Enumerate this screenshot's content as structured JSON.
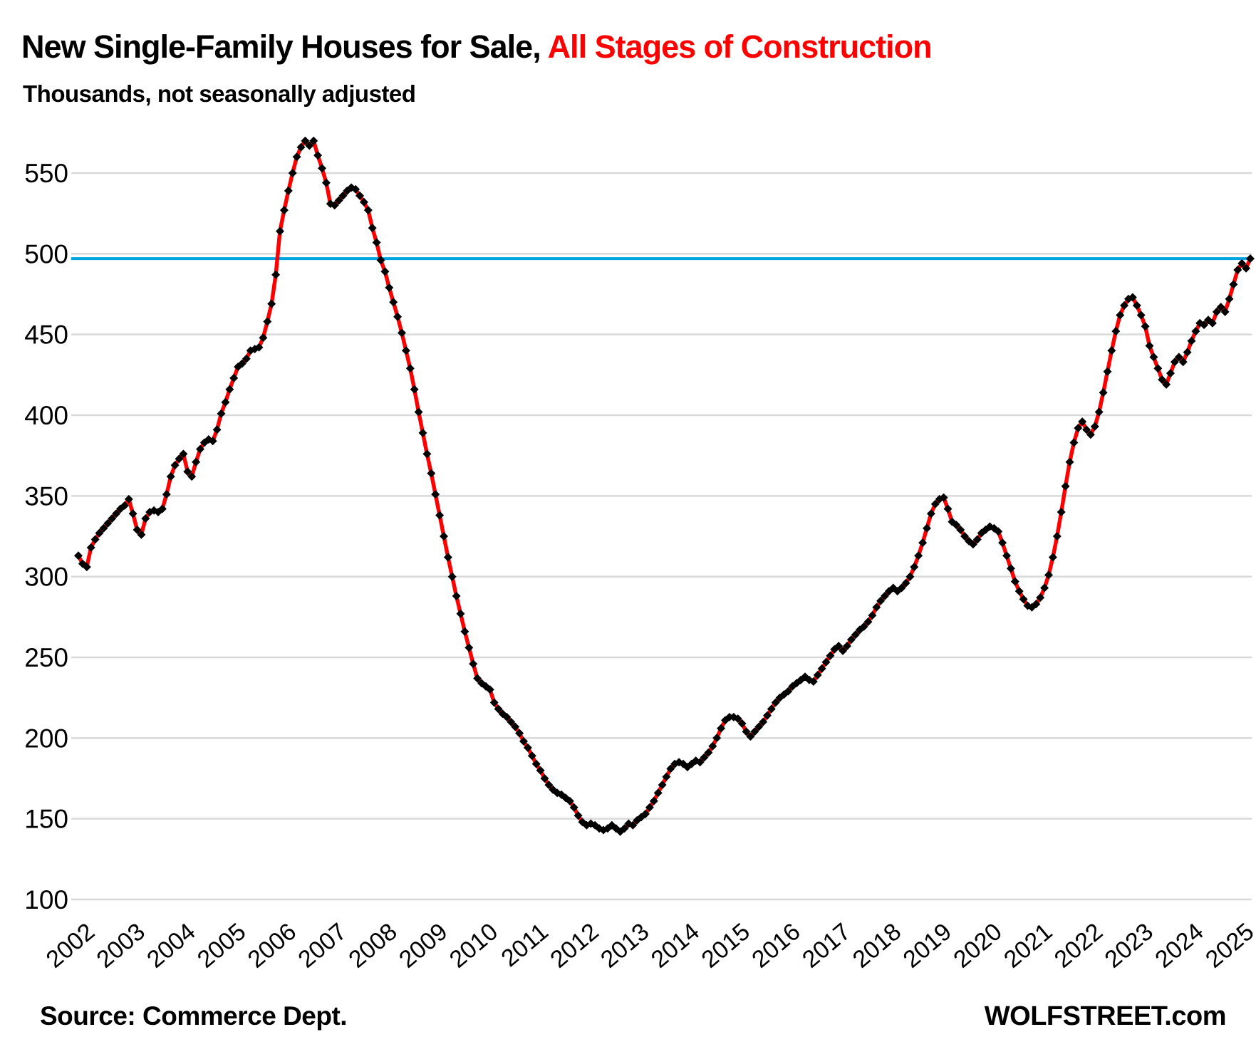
{
  "header": {
    "title_black": "New Single-Family Houses for Sale,",
    "title_red": "All Stages of Construction",
    "subtitle": "Thousands, not seasonally adjusted"
  },
  "footer": {
    "source": "Source: Commerce Dept.",
    "site": "WOLFSTREET.com"
  },
  "colors": {
    "series_line": "#ff0000",
    "marker": "#000000",
    "reference_line": "#00a3e0",
    "grid": "#d9d9d9",
    "title_accent": "#ff0000",
    "text": "#000000"
  },
  "chart_data": {
    "type": "line",
    "title": "New Single-Family Houses for Sale, All Stages of Construction",
    "subtitle": "Thousands, not seasonally adjusted",
    "xlabel": "",
    "ylabel": "Thousands, not seasonally adjusted",
    "x_start": "2002-01",
    "x_end": "2025-04",
    "points_per_year": 12,
    "x_tick_labels": [
      "2002",
      "2003",
      "2004",
      "2005",
      "2006",
      "2007",
      "2008",
      "2009",
      "2010",
      "2011",
      "2012",
      "2013",
      "2014",
      "2015",
      "2016",
      "2017",
      "2018",
      "2019",
      "2020",
      "2021",
      "2022",
      "2023",
      "2024",
      "2025"
    ],
    "y_ticks": [
      100,
      150,
      200,
      250,
      300,
      350,
      400,
      450,
      500,
      550
    ],
    "ylim": [
      100,
      575
    ],
    "grid": "horizontal",
    "legend": "none",
    "reference_line": {
      "value": 497
    },
    "series": [
      {
        "name": "New single-family houses for sale, all stages of construction (thousands, NSA)",
        "marker": "diamond",
        "values": [
          313,
          308,
          306,
          318,
          323,
          327,
          330,
          333,
          336,
          339,
          342,
          344,
          348,
          339,
          329,
          326,
          336,
          340,
          341,
          340,
          342,
          351,
          362,
          369,
          373,
          376,
          365,
          362,
          371,
          379,
          383,
          385,
          384,
          391,
          401,
          408,
          416,
          423,
          430,
          432,
          435,
          440,
          441,
          442,
          448,
          458,
          469,
          487,
          514,
          527,
          539,
          550,
          560,
          566,
          570,
          567,
          570,
          561,
          553,
          544,
          531,
          530,
          533,
          536,
          539,
          541,
          540,
          536,
          532,
          527,
          516,
          507,
          496,
          489,
          479,
          470,
          461,
          451,
          440,
          429,
          416,
          402,
          389,
          376,
          364,
          351,
          338,
          325,
          312,
          300,
          288,
          277,
          266,
          256,
          246,
          237,
          234,
          232,
          230,
          222,
          218,
          215,
          213,
          210,
          207,
          203,
          198,
          194,
          189,
          184,
          180,
          175,
          171,
          168,
          166,
          165,
          163,
          161,
          157,
          152,
          148,
          146,
          147,
          146,
          144,
          143,
          144,
          146,
          144,
          142,
          144,
          147,
          146,
          149,
          151,
          153,
          157,
          161,
          166,
          171,
          176,
          181,
          184,
          185,
          184,
          182,
          184,
          186,
          185,
          188,
          191,
          195,
          200,
          206,
          211,
          213,
          213,
          212,
          209,
          204,
          201,
          204,
          207,
          210,
          214,
          218,
          222,
          225,
          227,
          229,
          232,
          234,
          236,
          238,
          236,
          235,
          239,
          243,
          247,
          251,
          255,
          257,
          254,
          257,
          261,
          264,
          267,
          269,
          272,
          276,
          281,
          285,
          288,
          291,
          293,
          291,
          293,
          296,
          300,
          306,
          313,
          321,
          330,
          339,
          345,
          348,
          349,
          342,
          334,
          332,
          329,
          325,
          322,
          320,
          323,
          327,
          329,
          331,
          330,
          328,
          321,
          313,
          305,
          297,
          291,
          286,
          282,
          281,
          283,
          287,
          293,
          301,
          312,
          325,
          340,
          356,
          371,
          383,
          392,
          396,
          391,
          388,
          393,
          402,
          414,
          427,
          440,
          452,
          462,
          468,
          472,
          473,
          468,
          462,
          455,
          443,
          436,
          429,
          422,
          419,
          426,
          433,
          436,
          433,
          439,
          446,
          452,
          457,
          456,
          459,
          457,
          464,
          467,
          464,
          472,
          481,
          490,
          494,
          491,
          497
        ]
      }
    ]
  }
}
